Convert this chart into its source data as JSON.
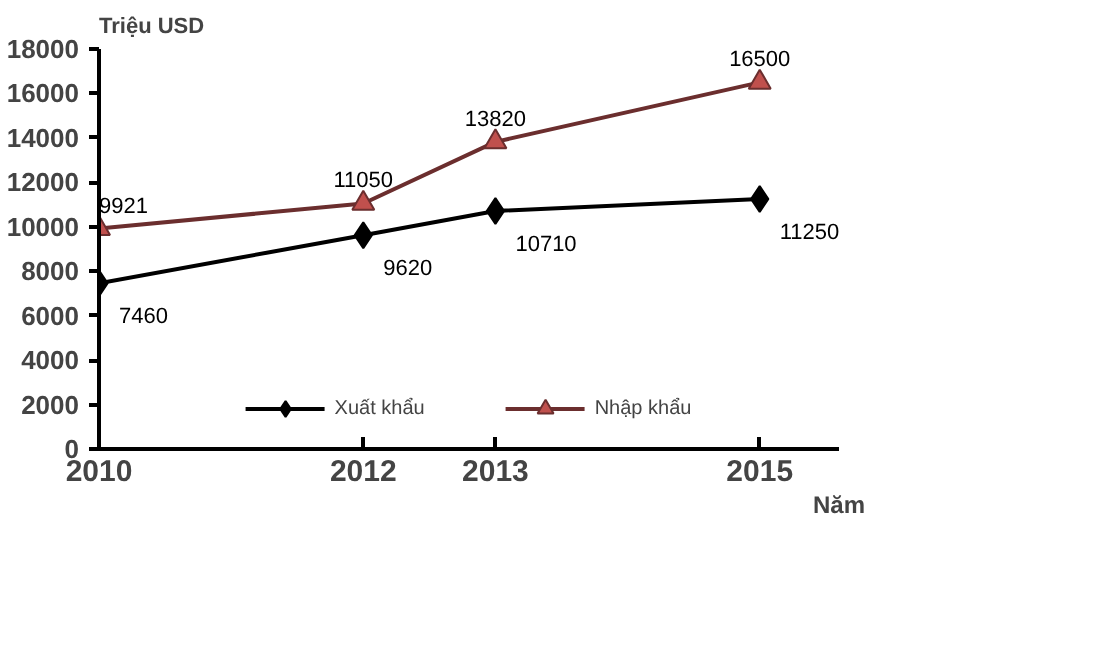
{
  "chart_data": {
    "type": "line",
    "ylabel": "Triệu USD",
    "xlabel": "Năm",
    "x": [
      2010,
      2012,
      2013,
      2015
    ],
    "series": [
      {
        "name": "Xuất khẩu",
        "color": "#000000",
        "marker": "diamond",
        "values": [
          7460,
          9620,
          10710,
          11250
        ]
      },
      {
        "name": "Nhập khẩu",
        "color": "#6b2e2e",
        "marker": "triangle",
        "values": [
          9921,
          11050,
          13820,
          16500
        ]
      }
    ],
    "xlim": [
      2010,
      2015.6
    ],
    "xticks": [
      2010,
      2012,
      2013,
      2015
    ],
    "ylim": [
      0,
      18000
    ],
    "yticks": [
      0,
      2000,
      4000,
      6000,
      8000,
      10000,
      12000,
      14000,
      16000,
      18000
    ],
    "grid": false,
    "legend": "bottom",
    "data_labels": true
  }
}
